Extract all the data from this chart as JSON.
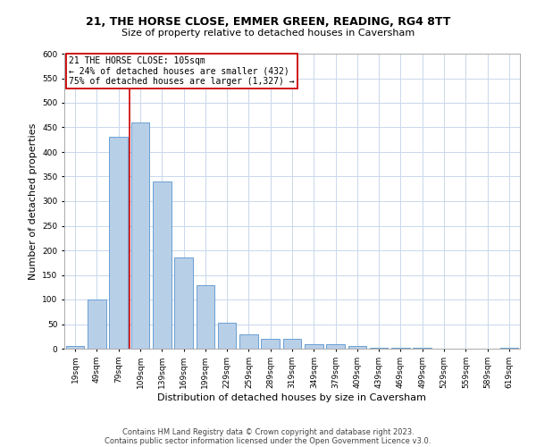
{
  "title": "21, THE HORSE CLOSE, EMMER GREEN, READING, RG4 8TT",
  "subtitle": "Size of property relative to detached houses in Caversham",
  "xlabel": "Distribution of detached houses by size in Caversham",
  "ylabel": "Number of detached properties",
  "footnote1": "Contains HM Land Registry data © Crown copyright and database right 2023.",
  "footnote2": "Contains public sector information licensed under the Open Government Licence v3.0.",
  "bar_color": "#b8cfe8",
  "bar_edge_color": "#6a9fd4",
  "grid_color": "#c8d8ec",
  "vline_color": "#cc0000",
  "annotation_box_color": "#cc0000",
  "categories": [
    "19sqm",
    "49sqm",
    "79sqm",
    "109sqm",
    "139sqm",
    "169sqm",
    "199sqm",
    "229sqm",
    "259sqm",
    "289sqm",
    "319sqm",
    "349sqm",
    "379sqm",
    "409sqm",
    "439sqm",
    "469sqm",
    "499sqm",
    "529sqm",
    "559sqm",
    "589sqm",
    "619sqm"
  ],
  "values": [
    6,
    100,
    430,
    460,
    340,
    185,
    130,
    52,
    30,
    20,
    20,
    10,
    10,
    5,
    2,
    1,
    1,
    0,
    0,
    0,
    1
  ],
  "ylim": [
    0,
    600
  ],
  "yticks": [
    0,
    50,
    100,
    150,
    200,
    250,
    300,
    350,
    400,
    450,
    500,
    550,
    600
  ],
  "property_label": "21 THE HORSE CLOSE: 105sqm",
  "smaller_pct": "24%",
  "smaller_count": "432",
  "larger_pct": "75%",
  "larger_count": "1,327",
  "vline_position": 3,
  "bar_width": 0.85,
  "title_fontsize": 9,
  "subtitle_fontsize": 8,
  "xlabel_fontsize": 8,
  "ylabel_fontsize": 8,
  "tick_fontsize": 6.5,
  "annot_fontsize": 7,
  "footnote_fontsize": 6
}
